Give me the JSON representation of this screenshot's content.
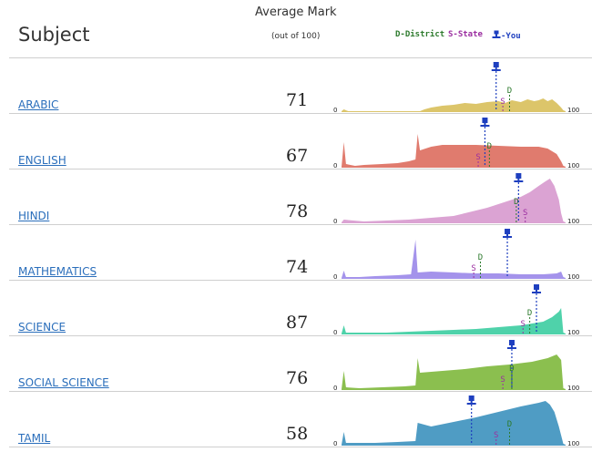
{
  "header": {
    "subject_label": "Subject",
    "average_label": "Average Mark",
    "out_of_label": "(out of 100)",
    "legend": {
      "district": "D-District",
      "state": "S-State",
      "you": "-You"
    }
  },
  "axis": {
    "min_label": "0",
    "max_label": "100"
  },
  "marker_letters": {
    "district": "D",
    "state": "S"
  },
  "rows": [
    {
      "subject": "ARABIC",
      "average": "71",
      "color": "#dcc56a",
      "you": 69,
      "state": 72,
      "district": 75,
      "dist": [
        [
          0,
          0
        ],
        [
          1,
          2
        ],
        [
          3,
          0
        ],
        [
          35,
          0
        ],
        [
          37,
          2
        ],
        [
          40,
          4
        ],
        [
          45,
          6
        ],
        [
          50,
          7
        ],
        [
          55,
          9
        ],
        [
          60,
          8
        ],
        [
          65,
          10
        ],
        [
          70,
          11
        ],
        [
          73,
          9
        ],
        [
          76,
          12
        ],
        [
          80,
          10
        ],
        [
          83,
          13
        ],
        [
          86,
          11
        ],
        [
          88,
          12
        ],
        [
          90,
          14
        ],
        [
          92,
          11
        ],
        [
          94,
          13
        ],
        [
          96,
          9
        ],
        [
          98,
          4
        ],
        [
          99,
          1
        ]
      ]
    },
    {
      "subject": "ENGLISH",
      "average": "67",
      "color": "#e07b6e",
      "you": 64,
      "state": 61,
      "district": 66,
      "dist": [
        [
          0,
          0
        ],
        [
          1,
          27
        ],
        [
          2,
          3
        ],
        [
          6,
          1
        ],
        [
          10,
          2
        ],
        [
          18,
          3
        ],
        [
          25,
          4
        ],
        [
          30,
          6
        ],
        [
          33,
          8
        ],
        [
          34,
          36
        ],
        [
          35,
          18
        ],
        [
          40,
          22
        ],
        [
          45,
          24
        ],
        [
          50,
          24
        ],
        [
          60,
          24
        ],
        [
          70,
          23
        ],
        [
          80,
          22
        ],
        [
          88,
          22
        ],
        [
          92,
          20
        ],
        [
          96,
          14
        ],
        [
          98,
          6
        ],
        [
          99,
          1
        ]
      ]
    },
    {
      "subject": "HINDI",
      "average": "78",
      "color": "#dba3d3",
      "you": 79,
      "state": 82,
      "district": 78,
      "dist": [
        [
          0,
          0
        ],
        [
          1,
          3
        ],
        [
          10,
          1
        ],
        [
          20,
          2
        ],
        [
          30,
          3
        ],
        [
          40,
          5
        ],
        [
          50,
          7
        ],
        [
          55,
          10
        ],
        [
          60,
          13
        ],
        [
          65,
          16
        ],
        [
          70,
          20
        ],
        [
          75,
          24
        ],
        [
          80,
          28
        ],
        [
          84,
          33
        ],
        [
          88,
          40
        ],
        [
          91,
          45
        ],
        [
          93,
          48
        ],
        [
          95,
          40
        ],
        [
          97,
          25
        ],
        [
          98,
          10
        ],
        [
          99,
          1
        ]
      ]
    },
    {
      "subject": "MATHEMATICS",
      "average": "74",
      "color": "#a493eb",
      "you": 74,
      "state": 59,
      "district": 62,
      "dist": [
        [
          0,
          0
        ],
        [
          1,
          8
        ],
        [
          2,
          1
        ],
        [
          8,
          1
        ],
        [
          15,
          2
        ],
        [
          25,
          3
        ],
        [
          31,
          4
        ],
        [
          33,
          42
        ],
        [
          34,
          6
        ],
        [
          40,
          7
        ],
        [
          50,
          6
        ],
        [
          60,
          5
        ],
        [
          70,
          5
        ],
        [
          80,
          4
        ],
        [
          90,
          4
        ],
        [
          96,
          5
        ],
        [
          98,
          7
        ],
        [
          99,
          1
        ]
      ]
    },
    {
      "subject": "SCIENCE",
      "average": "87",
      "color": "#4fd2aa",
      "you": 87,
      "state": 81,
      "district": 84,
      "dist": [
        [
          0,
          0
        ],
        [
          1,
          9
        ],
        [
          2,
          1
        ],
        [
          10,
          1
        ],
        [
          20,
          1
        ],
        [
          30,
          2
        ],
        [
          40,
          3
        ],
        [
          50,
          4
        ],
        [
          60,
          5
        ],
        [
          70,
          7
        ],
        [
          80,
          9
        ],
        [
          85,
          11
        ],
        [
          90,
          13
        ],
        [
          94,
          18
        ],
        [
          97,
          24
        ],
        [
          98,
          28
        ],
        [
          99,
          1
        ]
      ]
    },
    {
      "subject": "SOCIAL SCIENCE",
      "average": "76",
      "color": "#8bbf4f",
      "you": 76,
      "state": 72,
      "district": 76,
      "dist": [
        [
          0,
          0
        ],
        [
          1,
          20
        ],
        [
          2,
          2
        ],
        [
          8,
          1
        ],
        [
          18,
          2
        ],
        [
          28,
          3
        ],
        [
          33,
          4
        ],
        [
          34,
          34
        ],
        [
          35,
          18
        ],
        [
          45,
          20
        ],
        [
          55,
          22
        ],
        [
          65,
          25
        ],
        [
          75,
          27
        ],
        [
          85,
          30
        ],
        [
          92,
          34
        ],
        [
          96,
          38
        ],
        [
          98,
          32
        ],
        [
          99,
          1
        ]
      ]
    },
    {
      "subject": "TAMIL",
      "average": "58",
      "color": "#4f9cc4",
      "you": 58,
      "state": 69,
      "district": 75,
      "dist": [
        [
          0,
          0
        ],
        [
          1,
          14
        ],
        [
          2,
          2
        ],
        [
          15,
          2
        ],
        [
          25,
          3
        ],
        [
          33,
          4
        ],
        [
          34,
          24
        ],
        [
          40,
          20
        ],
        [
          50,
          25
        ],
        [
          60,
          30
        ],
        [
          70,
          36
        ],
        [
          80,
          42
        ],
        [
          88,
          46
        ],
        [
          91,
          48
        ],
        [
          93,
          44
        ],
        [
          95,
          36
        ],
        [
          97,
          20
        ],
        [
          99,
          1
        ]
      ]
    }
  ]
}
